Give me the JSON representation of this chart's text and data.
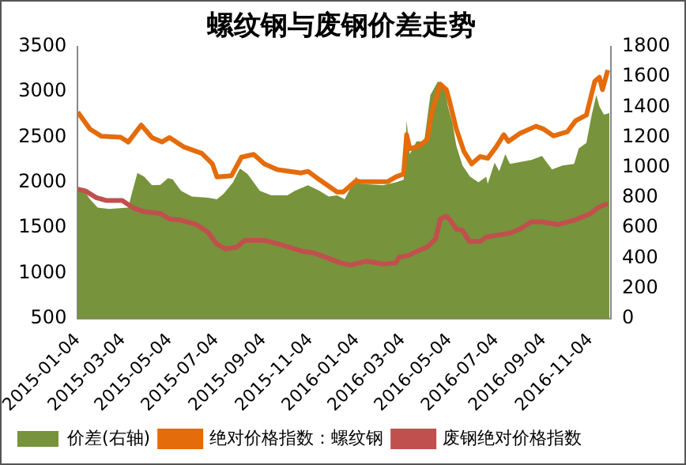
{
  "chart_data": {
    "type": "line",
    "title": "螺纹钢与废钢价差走势",
    "xlim": [
      "2015-01-04",
      "2016-12-01"
    ],
    "xticks": [
      "2015-01-04",
      "2015-03-04",
      "2015-05-04",
      "2015-07-04",
      "2015-09-04",
      "2015-11-04",
      "2016-01-04",
      "2016-03-04",
      "2016-05-04",
      "2016-07-04",
      "2016-09-04",
      "2016-11-04"
    ],
    "ylim": [
      500,
      3500
    ],
    "yticks": [
      500,
      1000,
      1500,
      2000,
      2500,
      3000,
      3500
    ],
    "y2lim": [
      0,
      1800
    ],
    "y2ticks": [
      0,
      200,
      400,
      600,
      800,
      1000,
      1200,
      1400,
      1600,
      1800
    ],
    "grid": false,
    "legend": "bottom",
    "marker": "none",
    "series": [
      {
        "name": "价差(右轴)",
        "type": "area",
        "axis": "y2",
        "color": "#77933c",
        "x": [
          "2015-01-04",
          "2015-01-14",
          "2015-01-20",
          "2015-01-30",
          "2015-02-14",
          "2015-03-11",
          "2015-03-15",
          "2015-03-23",
          "2015-04-01",
          "2015-04-11",
          "2015-04-22",
          "2015-05-02",
          "2015-05-08",
          "2015-05-19",
          "2015-06-02",
          "2015-06-23",
          "2015-07-05",
          "2015-07-14",
          "2015-07-26",
          "2015-08-04",
          "2015-08-14",
          "2015-08-30",
          "2015-09-14",
          "2015-10-05",
          "2015-10-15",
          "2015-11-01",
          "2015-11-16",
          "2015-11-28",
          "2015-12-09",
          "2015-12-19",
          "2016-01-03",
          "2016-01-09",
          "2016-02-07",
          "2016-02-24",
          "2016-03-05",
          "2016-03-09",
          "2016-03-13",
          "2016-03-22",
          "2016-04-01",
          "2016-04-09",
          "2016-04-19",
          "2016-04-28",
          "2016-05-02",
          "2016-05-08",
          "2016-05-13",
          "2016-05-21",
          "2016-05-31",
          "2016-06-11",
          "2016-06-21",
          "2016-06-23",
          "2016-07-02",
          "2016-07-08",
          "2016-07-16",
          "2016-07-22",
          "2016-08-19",
          "2016-09-02",
          "2016-09-15",
          "2016-09-29",
          "2016-10-14",
          "2016-10-20",
          "2016-10-30",
          "2016-11-06",
          "2016-11-12",
          "2016-11-16",
          "2016-11-22",
          "2016-11-29"
        ],
        "values": [
          873,
          834,
          790,
          734,
          725,
          734,
          815,
          964,
          938,
          882,
          885,
          930,
          921,
          846,
          808,
          800,
          790,
          827,
          902,
          994,
          957,
          846,
          815,
          815,
          846,
          882,
          846,
          808,
          815,
          790,
          938,
          892,
          882,
          902,
          919,
          1310,
          1087,
          1173,
          1173,
          1478,
          1570,
          1515,
          1404,
          1292,
          1143,
          1013,
          938,
          902,
          938,
          892,
          1031,
          975,
          1087,
          1024,
          1050,
          1076,
          987,
          1013,
          1024,
          1125,
          1162,
          1349,
          1478,
          1404,
          1349,
          1360
        ]
      },
      {
        "name": "绝对价格指数：螺纹钢",
        "color": "#e46c0a",
        "x": [
          "2015-01-04",
          "2015-01-20",
          "2015-02-04",
          "2015-03-01",
          "2015-03-11",
          "2015-03-28",
          "2015-04-11",
          "2015-04-24",
          "2015-05-04",
          "2015-05-23",
          "2015-06-15",
          "2015-06-29",
          "2015-07-05",
          "2015-07-24",
          "2015-08-06",
          "2015-08-22",
          "2015-09-05",
          "2015-09-22",
          "2015-10-23",
          "2015-11-01",
          "2015-11-16",
          "2015-12-09",
          "2015-12-17",
          "2016-01-03",
          "2016-01-09",
          "2016-02-13",
          "2016-02-24",
          "2016-03-05",
          "2016-03-09",
          "2016-03-13",
          "2016-03-26",
          "2016-04-05",
          "2016-04-11",
          "2016-04-22",
          "2016-04-30",
          "2016-05-04",
          "2016-05-13",
          "2016-05-23",
          "2016-06-02",
          "2016-06-13",
          "2016-06-23",
          "2016-07-04",
          "2016-07-14",
          "2016-07-20",
          "2016-08-04",
          "2016-08-25",
          "2016-09-04",
          "2016-09-17",
          "2016-10-05",
          "2016-10-16",
          "2016-10-30",
          "2016-11-10",
          "2016-11-16",
          "2016-11-20",
          "2016-11-27"
        ],
        "values": [
          2776,
          2590,
          2510,
          2500,
          2447,
          2634,
          2496,
          2447,
          2496,
          2392,
          2323,
          2206,
          2063,
          2076,
          2280,
          2310,
          2206,
          2143,
          2106,
          2124,
          2031,
          1896,
          1896,
          2020,
          2009,
          2009,
          2063,
          2094,
          2528,
          2373,
          2402,
          2478,
          2775,
          3085,
          3024,
          2900,
          2589,
          2342,
          2206,
          2286,
          2268,
          2392,
          2528,
          2453,
          2541,
          2621,
          2590,
          2515,
          2559,
          2682,
          2745,
          3117,
          3160,
          3024,
          3240
        ]
      },
      {
        "name": "废钢绝对价格指数",
        "color": "#c0504d",
        "x": [
          "2015-01-04",
          "2015-01-14",
          "2015-01-28",
          "2015-02-10",
          "2015-03-03",
          "2015-03-17",
          "2015-04-01",
          "2015-04-22",
          "2015-05-04",
          "2015-05-19",
          "2015-06-08",
          "2015-06-23",
          "2015-07-05",
          "2015-07-16",
          "2015-07-31",
          "2015-08-10",
          "2015-09-06",
          "2015-09-25",
          "2015-10-26",
          "2015-11-07",
          "2015-11-28",
          "2015-12-13",
          "2015-12-27",
          "2016-01-17",
          "2016-02-07",
          "2016-02-24",
          "2016-02-28",
          "2016-03-11",
          "2016-03-22",
          "2016-04-05",
          "2016-04-16",
          "2016-04-22",
          "2016-04-30",
          "2016-05-05",
          "2016-05-13",
          "2016-05-21",
          "2016-05-30",
          "2016-06-13",
          "2016-06-21",
          "2016-07-22",
          "2016-08-04",
          "2016-08-19",
          "2016-09-02",
          "2016-09-23",
          "2016-10-14",
          "2016-11-04",
          "2016-11-14",
          "2016-11-27"
        ],
        "values": [
          1927,
          1908,
          1834,
          1803,
          1803,
          1723,
          1678,
          1660,
          1598,
          1586,
          1537,
          1455,
          1319,
          1269,
          1288,
          1362,
          1362,
          1319,
          1240,
          1228,
          1165,
          1115,
          1091,
          1134,
          1102,
          1115,
          1177,
          1196,
          1240,
          1290,
          1382,
          1598,
          1630,
          1586,
          1487,
          1475,
          1351,
          1351,
          1400,
          1443,
          1487,
          1567,
          1567,
          1537,
          1586,
          1654,
          1723,
          1771
        ]
      }
    ]
  }
}
